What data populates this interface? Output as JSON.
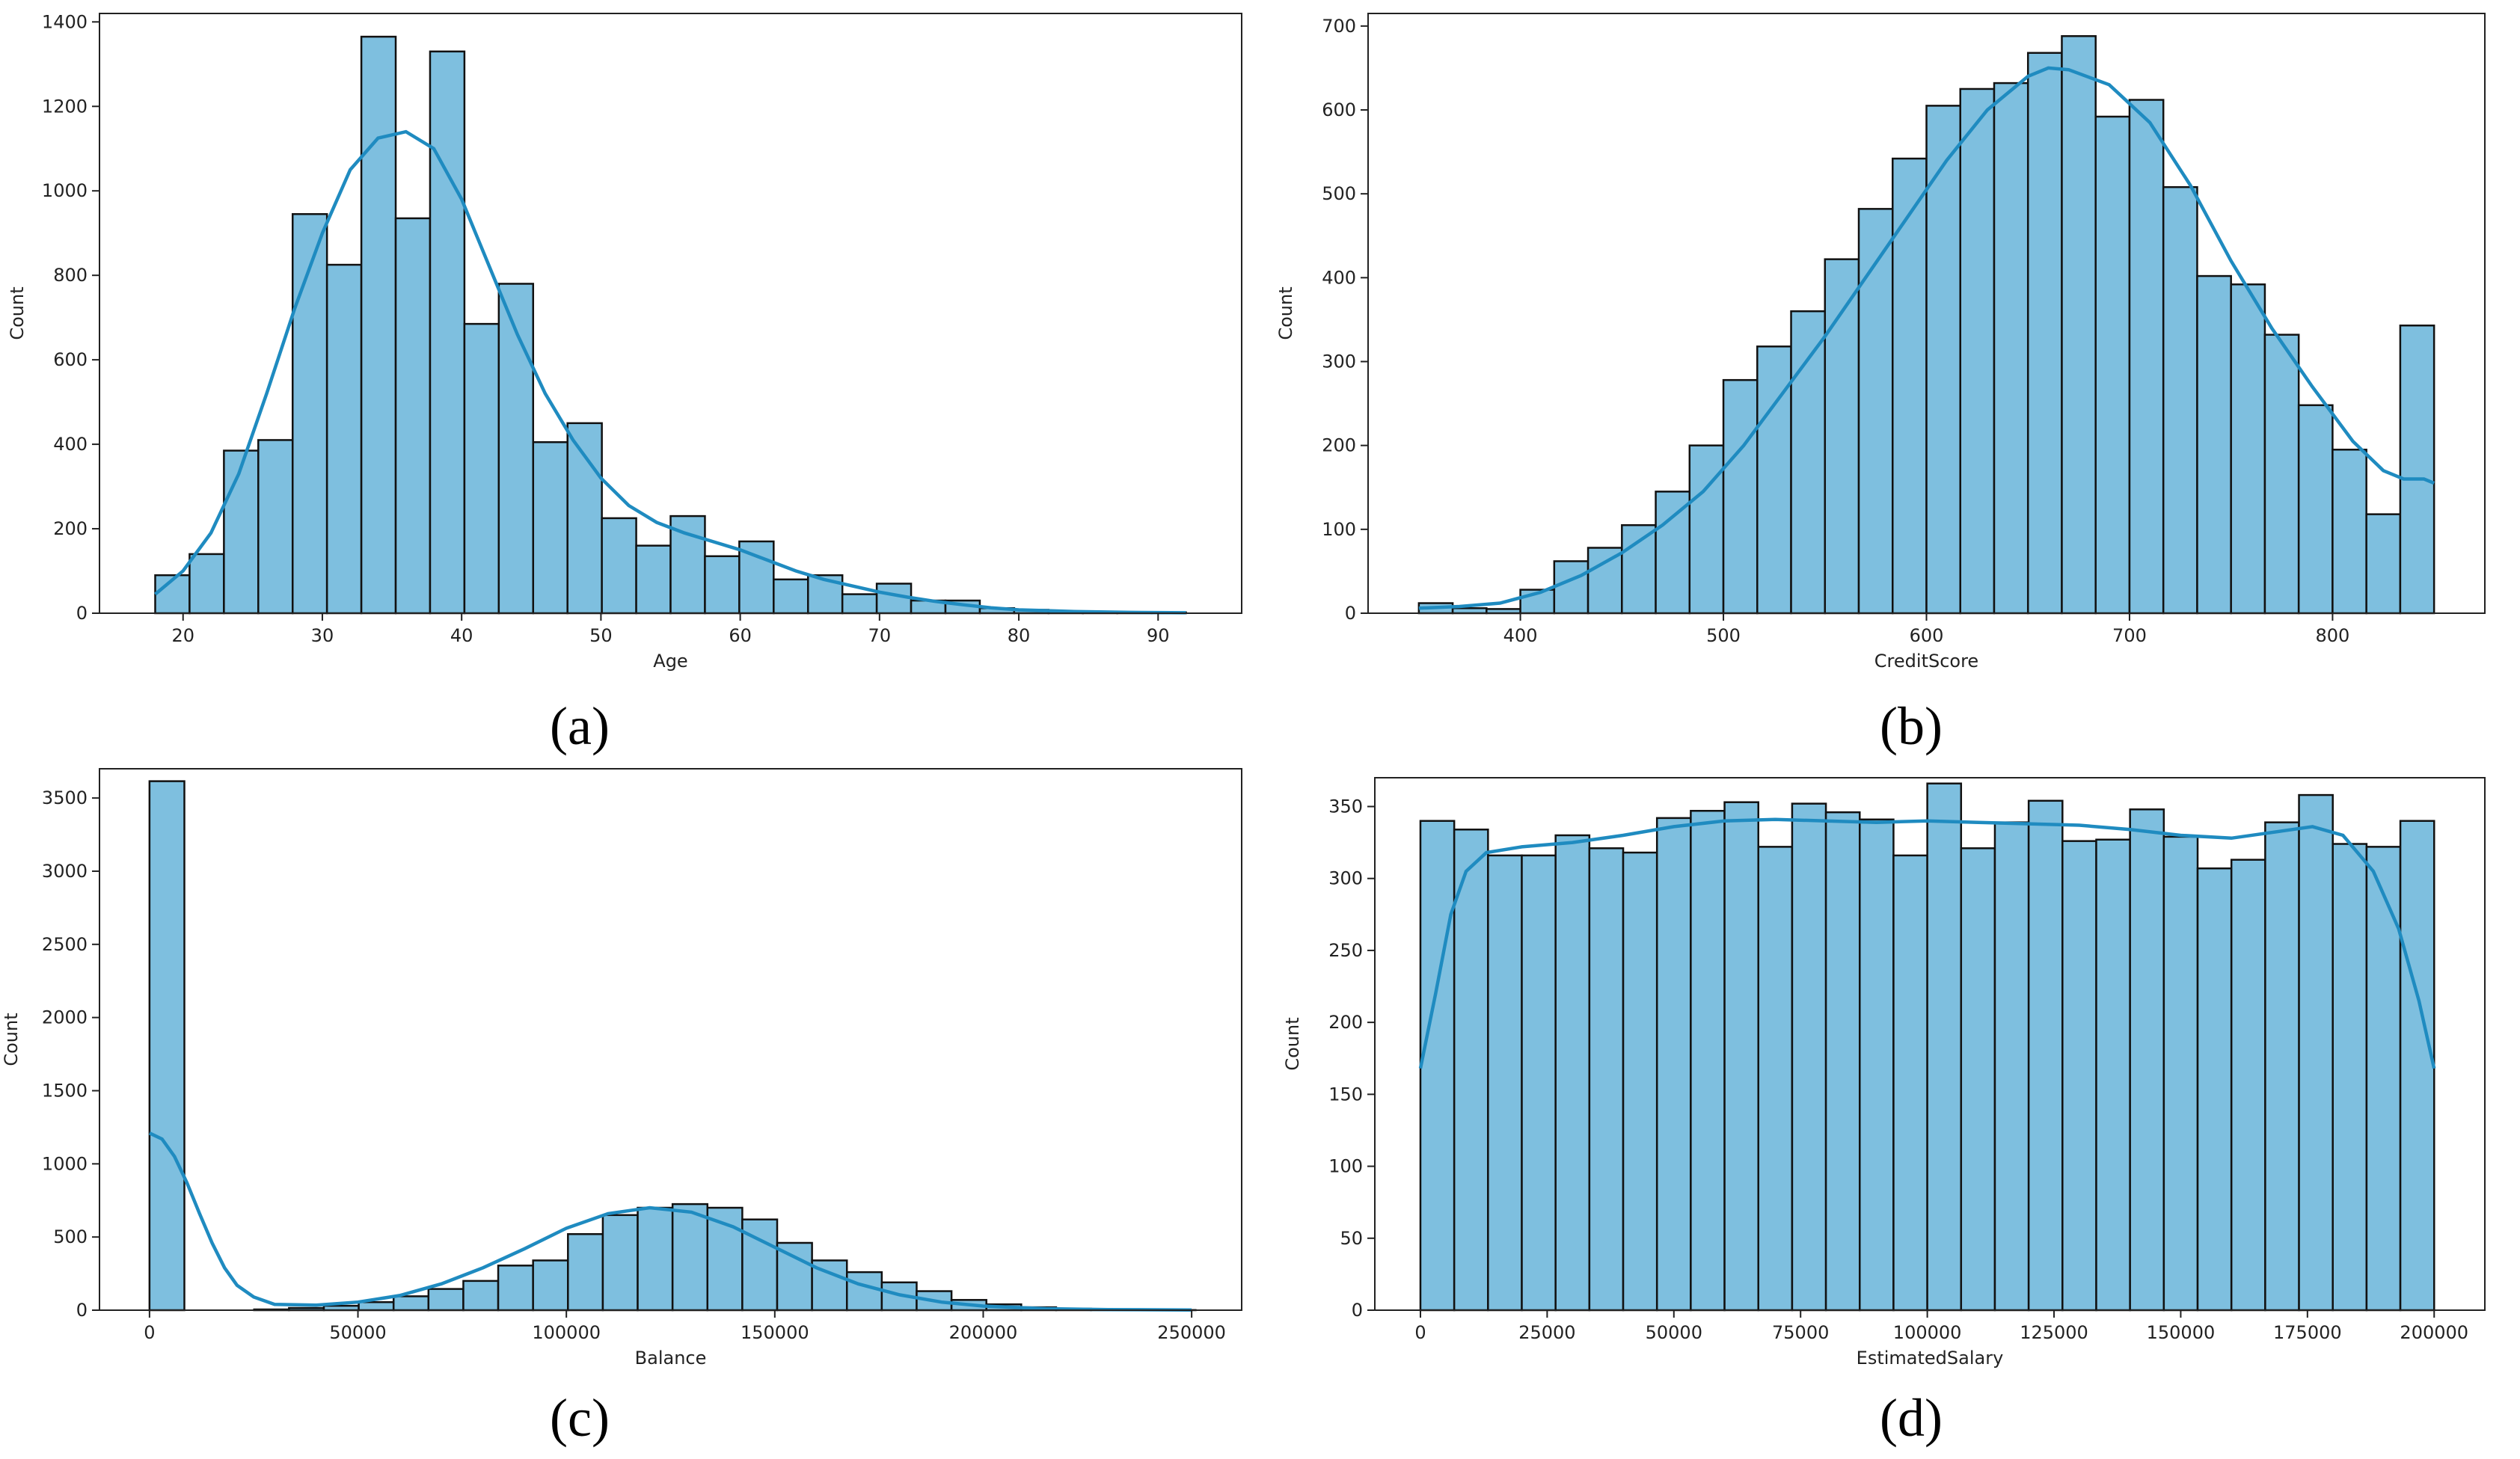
{
  "chart_data": [
    {
      "type": "histogram",
      "panel": "a",
      "xlabel": "Age",
      "ylabel": "Count",
      "xlim": [
        14,
        96
      ],
      "ylim": [
        0,
        1420
      ],
      "xticks": [
        20,
        30,
        40,
        50,
        60,
        70,
        80,
        90
      ],
      "yticks": [
        0,
        200,
        400,
        600,
        800,
        1000,
        1200,
        1400
      ],
      "bin_start": 18,
      "bin_width": 2.4667,
      "values": [
        90,
        140,
        385,
        410,
        945,
        825,
        1365,
        935,
        1330,
        685,
        780,
        405,
        450,
        225,
        160,
        230,
        135,
        170,
        80,
        90,
        45,
        70,
        30,
        30,
        12,
        8,
        4,
        3,
        2,
        2
      ],
      "kde": [
        [
          18,
          45
        ],
        [
          20,
          100
        ],
        [
          22,
          190
        ],
        [
          24,
          330
        ],
        [
          26,
          520
        ],
        [
          28,
          720
        ],
        [
          30,
          900
        ],
        [
          32,
          1050
        ],
        [
          34,
          1125
        ],
        [
          36,
          1140
        ],
        [
          38,
          1100
        ],
        [
          40,
          980
        ],
        [
          42,
          820
        ],
        [
          44,
          660
        ],
        [
          46,
          520
        ],
        [
          48,
          410
        ],
        [
          50,
          320
        ],
        [
          52,
          255
        ],
        [
          54,
          215
        ],
        [
          56,
          190
        ],
        [
          58,
          170
        ],
        [
          60,
          150
        ],
        [
          62,
          125
        ],
        [
          64,
          100
        ],
        [
          66,
          80
        ],
        [
          68,
          65
        ],
        [
          70,
          50
        ],
        [
          72,
          38
        ],
        [
          74,
          28
        ],
        [
          76,
          20
        ],
        [
          78,
          13
        ],
        [
          80,
          8
        ],
        [
          84,
          4
        ],
        [
          88,
          2
        ],
        [
          92,
          1
        ]
      ]
    },
    {
      "type": "histogram",
      "panel": "b",
      "xlabel": "CreditScore",
      "ylabel": "Count",
      "xlim": [
        325,
        875
      ],
      "ylim": [
        0,
        715
      ],
      "xticks": [
        400,
        500,
        600,
        700,
        800
      ],
      "yticks": [
        0,
        100,
        200,
        300,
        400,
        500,
        600,
        700
      ],
      "bin_start": 350,
      "bin_width": 16.6667,
      "values": [
        12,
        6,
        5,
        28,
        62,
        78,
        105,
        145,
        200,
        278,
        318,
        360,
        422,
        482,
        542,
        605,
        625,
        632,
        668,
        688,
        592,
        612,
        508,
        402,
        392,
        332,
        248,
        195,
        118,
        343
      ],
      "kde": [
        [
          350,
          6
        ],
        [
          370,
          8
        ],
        [
          390,
          12
        ],
        [
          410,
          25
        ],
        [
          430,
          45
        ],
        [
          450,
          72
        ],
        [
          470,
          105
        ],
        [
          490,
          145
        ],
        [
          510,
          200
        ],
        [
          530,
          265
        ],
        [
          550,
          330
        ],
        [
          570,
          400
        ],
        [
          590,
          470
        ],
        [
          610,
          540
        ],
        [
          630,
          600
        ],
        [
          650,
          640
        ],
        [
          660,
          650
        ],
        [
          670,
          648
        ],
        [
          690,
          630
        ],
        [
          710,
          585
        ],
        [
          730,
          510
        ],
        [
          750,
          420
        ],
        [
          770,
          340
        ],
        [
          790,
          270
        ],
        [
          810,
          205
        ],
        [
          825,
          170
        ],
        [
          835,
          160
        ],
        [
          845,
          160
        ],
        [
          850,
          155
        ]
      ]
    },
    {
      "type": "histogram",
      "panel": "c",
      "xlabel": "Balance",
      "ylabel": "Count",
      "xlim": [
        -12000,
        262000
      ],
      "ylim": [
        0,
        3700
      ],
      "xticks": [
        0,
        50000,
        100000,
        150000,
        200000,
        250000
      ],
      "xtick_labels": [
        "0",
        "50000",
        "100000",
        "150000",
        "200000",
        "250000"
      ],
      "yticks": [
        0,
        500,
        1000,
        1500,
        2000,
        2500,
        3000,
        3500
      ],
      "bin_start": 0,
      "bin_width": 8365,
      "values": [
        3615,
        0,
        0,
        5,
        15,
        30,
        55,
        95,
        145,
        200,
        305,
        340,
        520,
        650,
        700,
        725,
        700,
        620,
        460,
        340,
        260,
        190,
        130,
        70,
        40,
        20,
        10,
        5,
        2,
        1
      ],
      "kde": [
        [
          0,
          1210
        ],
        [
          3000,
          1170
        ],
        [
          6000,
          1050
        ],
        [
          9000,
          870
        ],
        [
          12000,
          660
        ],
        [
          15000,
          460
        ],
        [
          18000,
          290
        ],
        [
          21000,
          170
        ],
        [
          25000,
          90
        ],
        [
          30000,
          40
        ],
        [
          40000,
          35
        ],
        [
          50000,
          55
        ],
        [
          60000,
          100
        ],
        [
          70000,
          180
        ],
        [
          80000,
          290
        ],
        [
          90000,
          420
        ],
        [
          100000,
          560
        ],
        [
          110000,
          660
        ],
        [
          120000,
          700
        ],
        [
          130000,
          670
        ],
        [
          140000,
          570
        ],
        [
          150000,
          430
        ],
        [
          160000,
          290
        ],
        [
          170000,
          180
        ],
        [
          180000,
          105
        ],
        [
          190000,
          55
        ],
        [
          200000,
          28
        ],
        [
          215000,
          10
        ],
        [
          230000,
          4
        ],
        [
          250000,
          1
        ]
      ]
    },
    {
      "type": "histogram",
      "panel": "d",
      "xlabel": "EstimatedSalary",
      "ylabel": "Count",
      "xlim": [
        -9000,
        210000
      ],
      "ylim": [
        0,
        370
      ],
      "xticks": [
        0,
        25000,
        50000,
        75000,
        100000,
        125000,
        150000,
        175000,
        200000
      ],
      "xtick_labels": [
        "0",
        "25000",
        "50000",
        "75000",
        "100000",
        "125000",
        "150000",
        "175000",
        "200000"
      ],
      "yticks": [
        0,
        50,
        100,
        150,
        200,
        250,
        300,
        350
      ],
      "bin_start": 0,
      "bin_width": 6666.67,
      "values": [
        340,
        334,
        316,
        316,
        330,
        321,
        318,
        342,
        347,
        353,
        322,
        352,
        346,
        341,
        316,
        366,
        321,
        339,
        354,
        326,
        327,
        348,
        329,
        307,
        313,
        339,
        358,
        324,
        322,
        340
      ],
      "kde": [
        [
          0,
          168
        ],
        [
          3000,
          220
        ],
        [
          6000,
          275
        ],
        [
          9000,
          305
        ],
        [
          13000,
          318
        ],
        [
          20000,
          322
        ],
        [
          30000,
          325
        ],
        [
          40000,
          330
        ],
        [
          50000,
          336
        ],
        [
          60000,
          340
        ],
        [
          70000,
          341
        ],
        [
          80000,
          340
        ],
        [
          90000,
          339
        ],
        [
          100000,
          340
        ],
        [
          110000,
          339
        ],
        [
          120000,
          338
        ],
        [
          130000,
          337
        ],
        [
          140000,
          334
        ],
        [
          150000,
          330
        ],
        [
          160000,
          328
        ],
        [
          170000,
          333
        ],
        [
          176000,
          336
        ],
        [
          182000,
          330
        ],
        [
          188000,
          305
        ],
        [
          193000,
          265
        ],
        [
          197000,
          215
        ],
        [
          200000,
          168
        ]
      ]
    }
  ],
  "captions": {
    "a": "(a)",
    "b": "(b)",
    "c": "(c)",
    "d": "(d)"
  },
  "colors": {
    "bar_fill": "#7ebfdf",
    "bar_edge": "#111111",
    "kde_line": "#1f8bc0"
  }
}
